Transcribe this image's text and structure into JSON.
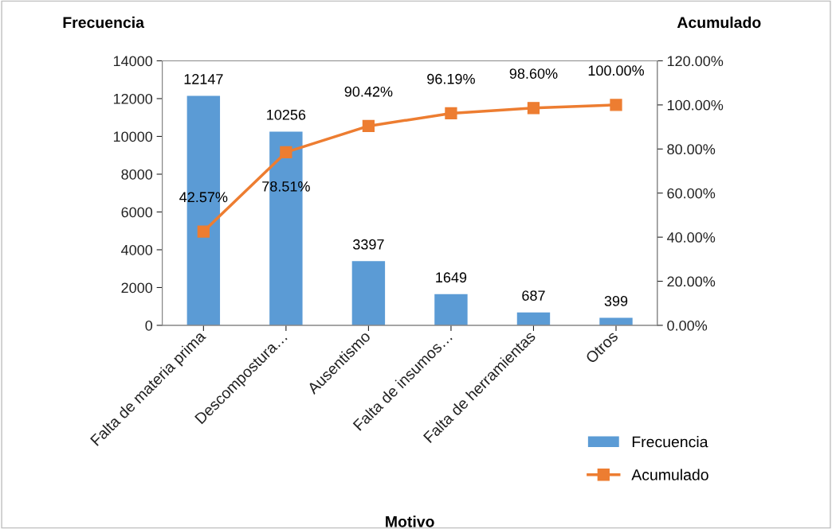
{
  "chart_data": {
    "type": "bar",
    "xlabel": "Motivo",
    "ylabel": "Frecuencia",
    "y2label": "Acumulado",
    "categories": [
      "Falta de materia prima",
      "Descompostura…",
      "Ausentismo",
      "Falta de insumos…",
      "Falta de herramientas",
      "Otros"
    ],
    "series": [
      {
        "name": "Frecuencia",
        "color": "#5b9bd5",
        "values": [
          12147,
          10256,
          3397,
          1649,
          687,
          399
        ],
        "data_labels": true
      },
      {
        "name": "Acumulado",
        "type": "line",
        "axis": "y2",
        "color": "#ed7d31",
        "marker": "square",
        "values": [
          42.57,
          78.51,
          90.42,
          96.19,
          98.6,
          100.0
        ],
        "value_labels": [
          "42.57%",
          "78.51%",
          "90.42%",
          "96.19%",
          "98.60%",
          "100.00%"
        ]
      }
    ],
    "ylim": [
      0,
      14000
    ],
    "yticks": [
      0,
      2000,
      4000,
      6000,
      8000,
      10000,
      12000,
      14000
    ],
    "y2lim": [
      0,
      120
    ],
    "y2ticks": [
      {
        "value": 0,
        "label": "0.00%"
      },
      {
        "value": 20,
        "label": "20.00%"
      },
      {
        "value": 40,
        "label": "40.00%"
      },
      {
        "value": 60,
        "label": "60.00%"
      },
      {
        "value": 80,
        "label": "80.00%"
      },
      {
        "value": 100,
        "label": "100.00%"
      },
      {
        "value": 120,
        "label": "120.00%"
      }
    ],
    "grid": false,
    "legend": "bottom right"
  }
}
